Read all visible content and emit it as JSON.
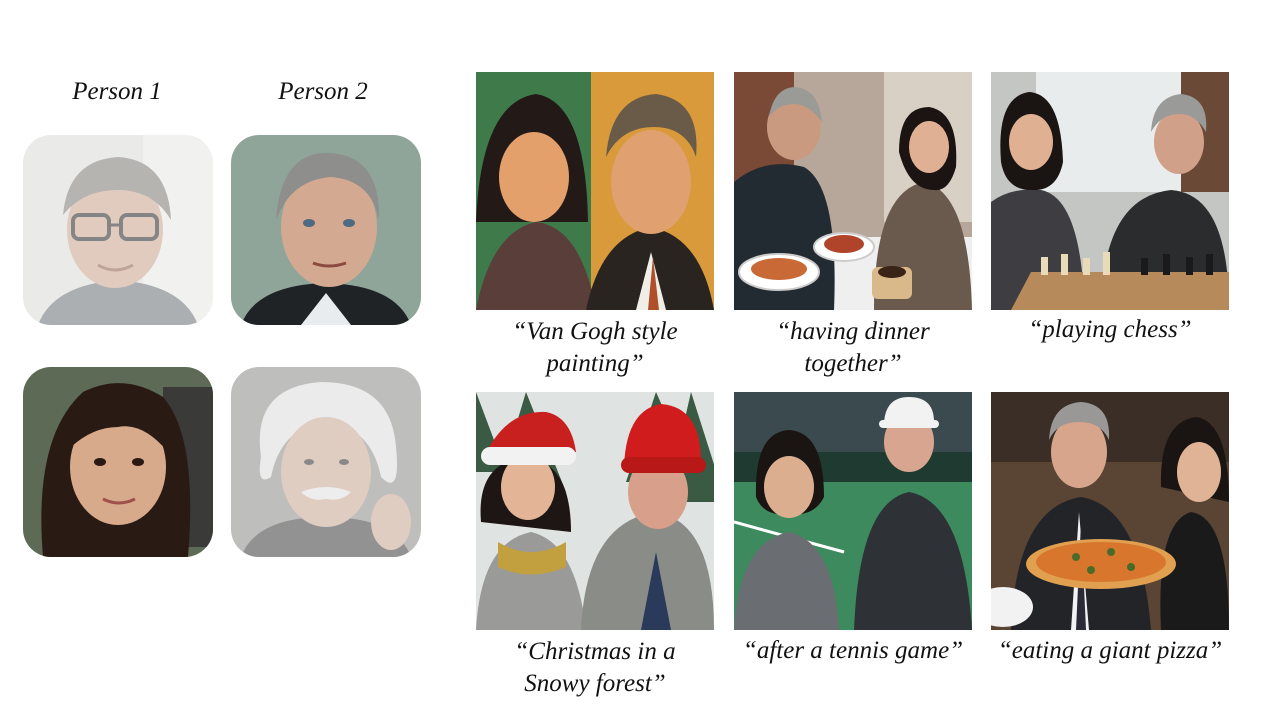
{
  "labels": {
    "person1": "Person 1",
    "person2": "Person 2"
  },
  "reference_faces": [
    {
      "row": 1,
      "column": "person1",
      "faded": true
    },
    {
      "row": 1,
      "column": "person2",
      "faded": false
    },
    {
      "row": 2,
      "column": "person1",
      "faded": false
    },
    {
      "row": 2,
      "column": "person2",
      "faded": true
    }
  ],
  "generated": [
    {
      "caption_line1": "“Van Gogh style",
      "caption_line2": "painting”"
    },
    {
      "caption_line1": "“having dinner",
      "caption_line2": "together”"
    },
    {
      "caption_line1": "“playing chess”",
      "caption_line2": ""
    },
    {
      "caption_line1": "“Christmas in a",
      "caption_line2": "Snowy forest”"
    },
    {
      "caption_line1": "“after a tennis game”",
      "caption_line2": ""
    },
    {
      "caption_line1": "“eating a giant pizza”",
      "caption_line2": ""
    }
  ]
}
